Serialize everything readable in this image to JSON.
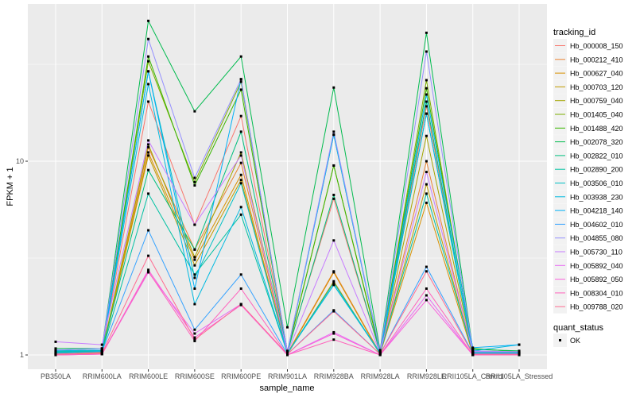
{
  "chart_data": {
    "type": "line",
    "xlabel": "sample_name",
    "ylabel": "FPKM + 1",
    "y_scale": "log10",
    "ylim": [
      0.844,
      64.8
    ],
    "yticks": [
      1,
      10
    ],
    "ytick_labels": [
      "1",
      "10"
    ],
    "grid": true,
    "legend_position": "right",
    "categories": [
      "PB350LA",
      "RRIM600LA",
      "RRIM600LE",
      "RRIM600SE",
      "RRIM600PE",
      "RRIM901LA",
      "RRIM928BA",
      "RRIM928LA",
      "RRIM928LE",
      "RRII105LA_Control",
      "RRII105LA_Stressed"
    ],
    "legend_title": "tracking_id",
    "shape_legend": {
      "title": "quant_status",
      "items": [
        "OK"
      ]
    },
    "series": [
      {
        "name": "Hb_000008_150",
        "color": "#F8766D",
        "values": [
          1.02,
          1.05,
          20.3,
          4.7,
          17.1,
          1.05,
          6.4,
          1.03,
          19.2,
          1.03,
          1.04
        ]
      },
      {
        "name": "Hb_000212_410",
        "color": "#EA8331",
        "values": [
          1.01,
          1.03,
          11.8,
          3.5,
          9.8,
          1.02,
          2.7,
          1.02,
          10.0,
          1.02,
          1.02
        ]
      },
      {
        "name": "Hb_000627_040",
        "color": "#D89000",
        "values": [
          1.0,
          1.02,
          11.1,
          3.1,
          8.5,
          1.01,
          2.67,
          1.01,
          6.1,
          1.01,
          1.01
        ]
      },
      {
        "name": "Hb_000703_120",
        "color": "#C09B00",
        "values": [
          1.01,
          1.02,
          10.7,
          2.9,
          8.0,
          1.01,
          2.4,
          1.01,
          7.6,
          1.02,
          1.01
        ]
      },
      {
        "name": "Hb_000759_040",
        "color": "#A3A500",
        "values": [
          1.02,
          1.04,
          12.2,
          3.2,
          11.1,
          1.03,
          9.5,
          1.02,
          13.5,
          1.03,
          1.03
        ]
      },
      {
        "name": "Hb_001405_040",
        "color": "#7CAE00",
        "values": [
          1.03,
          1.05,
          32.8,
          7.8,
          25.7,
          1.04,
          13.7,
          1.04,
          26.2,
          1.04,
          1.04
        ]
      },
      {
        "name": "Hb_001488_420",
        "color": "#39B600",
        "values": [
          1.05,
          1.06,
          34.7,
          7.5,
          23.4,
          1.04,
          9.5,
          1.04,
          23.8,
          1.08,
          1.04
        ]
      },
      {
        "name": "Hb_002078_320",
        "color": "#00BB4E",
        "values": [
          1.08,
          1.08,
          53.0,
          18.1,
          34.7,
          1.39,
          24.0,
          1.06,
          46.0,
          1.07,
          1.05
        ]
      },
      {
        "name": "Hb_002822_010",
        "color": "#00BF7D",
        "values": [
          1.04,
          1.05,
          9.0,
          3.5,
          14.2,
          1.03,
          6.7,
          1.03,
          20.3,
          1.02,
          1.02
        ]
      },
      {
        "name": "Hb_002890_200",
        "color": "#00C1A3",
        "values": [
          1.03,
          1.04,
          6.8,
          2.6,
          5.3,
          1.02,
          2.36,
          1.02,
          6.8,
          1.03,
          1.02
        ]
      },
      {
        "name": "Hb_003506_010",
        "color": "#00BFC4",
        "values": [
          1.04,
          1.05,
          29.1,
          2.5,
          7.7,
          1.02,
          2.3,
          1.02,
          17.6,
          1.03,
          1.03
        ]
      },
      {
        "name": "Hb_003938_230",
        "color": "#00BAE0",
        "values": [
          1.05,
          1.06,
          25.0,
          1.83,
          5.8,
          1.02,
          2.3,
          1.03,
          17.6,
          1.05,
          1.13
        ]
      },
      {
        "name": "Hb_004218_140",
        "color": "#00B0F6",
        "values": [
          1.06,
          1.08,
          29.1,
          2.2,
          26.5,
          1.03,
          13.7,
          1.03,
          22.1,
          1.09,
          1.13
        ]
      },
      {
        "name": "Hb_004602_010",
        "color": "#35A2FF",
        "values": [
          1.02,
          1.04,
          4.4,
          1.35,
          2.6,
          1.01,
          1.7,
          1.01,
          2.85,
          1.02,
          1.02
        ]
      },
      {
        "name": "Hb_004855_080",
        "color": "#9590FF",
        "values": [
          1.06,
          1.08,
          42.7,
          8.2,
          26.5,
          1.04,
          14.2,
          1.04,
          36.8,
          1.05,
          1.04
        ]
      },
      {
        "name": "Hb_005730_110",
        "color": "#C77CFF",
        "values": [
          1.17,
          1.13,
          12.8,
          4.7,
          10.7,
          1.03,
          3.9,
          1.03,
          8.8,
          1.04,
          1.04
        ]
      },
      {
        "name": "Hb_005892_040",
        "color": "#E76BF3",
        "values": [
          1.0,
          1.01,
          2.67,
          1.29,
          1.83,
          1.0,
          1.31,
          1.0,
          2.03,
          1.0,
          1.0
        ]
      },
      {
        "name": "Hb_005892_050",
        "color": "#FA62DB",
        "values": [
          1.0,
          1.01,
          2.75,
          1.23,
          1.81,
          1.0,
          1.29,
          1.0,
          1.92,
          1.0,
          1.0
        ]
      },
      {
        "name": "Hb_008304_010",
        "color": "#FF62BC",
        "values": [
          1.0,
          1.01,
          2.7,
          1.18,
          2.2,
          1.0,
          1.2,
          1.0,
          2.2,
          1.0,
          1.0
        ]
      },
      {
        "name": "Hb_009788_020",
        "color": "#FF6C91",
        "values": [
          1.01,
          1.02,
          3.25,
          1.2,
          1.83,
          1.01,
          1.68,
          1.01,
          2.7,
          1.01,
          1.01
        ]
      }
    ]
  }
}
